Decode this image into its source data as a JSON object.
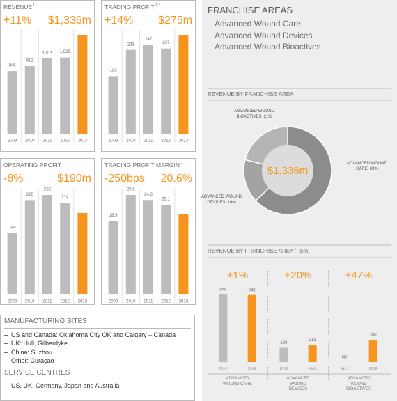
{
  "chart_data": [
    {
      "type": "bar",
      "title": "REVENUE",
      "title_note": "1",
      "change": "+11%",
      "headline": "$1,336m",
      "categories": [
        "2009",
        "2010",
        "2011",
        "2012",
        "2013"
      ],
      "values": [
        846,
        912,
        1019,
        1029,
        1336
      ],
      "value_labels": [
        "846",
        "912",
        "1,019",
        "1,029",
        null
      ],
      "colors": [
        "#bcbcbc",
        "#bcbcbc",
        "#bcbcbc",
        "#bcbcbc",
        "#f7941d"
      ]
    },
    {
      "type": "bar",
      "title": "TRADING PROFIT",
      "title_note": "1,2",
      "change": "+14%",
      "headline": "$275m",
      "categories": [
        "2009",
        "2010",
        "2011",
        "2012",
        "2013"
      ],
      "values": [
        160,
        233,
        247,
        237,
        275
      ],
      "value_labels": [
        "160",
        "233",
        "247",
        "237",
        null
      ],
      "colors": [
        "#bcbcbc",
        "#bcbcbc",
        "#bcbcbc",
        "#bcbcbc",
        "#f7941d"
      ]
    },
    {
      "type": "bar",
      "title": "OPERATING PROFIT",
      "title_note": "1",
      "change": "-8%",
      "headline": "$190m",
      "categories": [
        "2009",
        "2010",
        "2011",
        "2012",
        "2013"
      ],
      "values": [
        144,
        220,
        232,
        214,
        190
      ],
      "value_labels": [
        "144",
        "220",
        "232",
        "214",
        null
      ],
      "colors": [
        "#bcbcbc",
        "#bcbcbc",
        "#bcbcbc",
        "#bcbcbc",
        "#f7941d"
      ]
    },
    {
      "type": "bar",
      "title": "TRADING PROFIT MARGIN",
      "title_note": "2",
      "change": "-250bps",
      "headline": "20.6%",
      "categories": [
        "2009",
        "2010",
        "2011",
        "2012",
        "2013"
      ],
      "values": [
        18.9,
        25.6,
        24.3,
        23.1,
        20.6
      ],
      "value_labels": [
        "18.9",
        "25.6",
        "24.3",
        "23.1",
        null
      ],
      "colors": [
        "#bcbcbc",
        "#bcbcbc",
        "#bcbcbc",
        "#bcbcbc",
        "#f7941d"
      ]
    },
    {
      "type": "donut",
      "title": "REVENUE BY FRANCHISE AREA",
      "center_label": "$1,336m",
      "categories": [
        "ADVANCED WOUND CARE",
        "ADVANCED WOUND DEVICES",
        "ADVANCED WOUND BIOACTIVES"
      ],
      "values": [
        63,
        16,
        21
      ],
      "value_labels": [
        "63%",
        "16%",
        "21%"
      ],
      "colors": [
        "#8c8c8c",
        "#a3a3a3",
        "#b5b5b5"
      ]
    },
    {
      "type": "grouped_bar",
      "title": "REVENUE BY FRANCHISE AREA",
      "title_note": "1",
      "unit": "($m)",
      "colors": [
        "#bcbcbc",
        "#f7941d"
      ],
      "groups": [
        {
          "name": "ADVANCED WOUND CARE",
          "change": "+1%",
          "categories": [
            "2012",
            "2013"
          ],
          "values": [
            849,
            843
          ],
          "value_labels": [
            "849",
            "843"
          ]
        },
        {
          "name": "ADVANCED WOUND DEVICES",
          "change": "+20%",
          "categories": [
            "2012",
            "2013"
          ],
          "values": [
            180,
            213
          ],
          "value_labels": [
            "180",
            "213"
          ]
        },
        {
          "name": "ADVANCED WOUND BIOACTIVES",
          "change": "+47%",
          "categories": [
            "2012",
            "2013"
          ],
          "values": [
            0,
            280
          ],
          "value_labels": [
            "Nil",
            "280"
          ]
        }
      ]
    }
  ],
  "franchise_areas": {
    "title": "FRANCHISE AREAS",
    "items": [
      "Advanced Wound Care",
      "Advanced Wound Devices",
      "Advanced Wound Bioactives"
    ]
  },
  "sites": {
    "manufacturing_title": "MANUFACTURING SITES",
    "manufacturing": [
      "US and Canada: Oklahoma City OK and Calgary – Canada",
      "UK: Hull, Gilberdyke",
      "China: Suzhou",
      "Other: Curaçao"
    ],
    "service_title": "SERVICE CENTRES",
    "service": [
      "US, UK, Germany, Japan and Australia"
    ]
  }
}
